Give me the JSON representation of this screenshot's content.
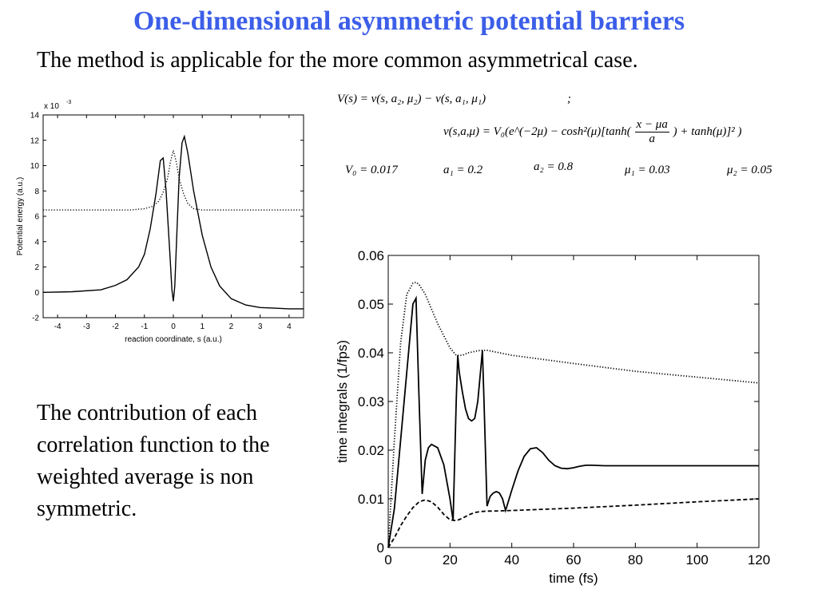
{
  "slide": {
    "title": "One-dimensional asymmetric potential barriers",
    "subtitle": "The method is applicable for the more common asymmetrical case.",
    "body_text": "The contribution of each correlation function to the weighted average is non symmetric."
  },
  "colors": {
    "title": "#3c5ee8",
    "text": "#000000"
  },
  "equations": {
    "V_def": "V(s) = ν(s, a₂, μ₂) − ν(s, a₁, μ₁)",
    "separator": ";",
    "nu_def_left": "ν(s,a,μ) = V₀(e^(−2μ) − cosh²(μ)[tanh(",
    "nu_frac_num": "x − μa",
    "nu_frac_den": "a",
    "nu_def_right": ") + tanh(μ)]² )",
    "params": [
      "V₀ = 0.017",
      "a₁ = 0.2",
      "a₂ = 0.8",
      "μ₁ = 0.03",
      "μ₂ = 0.05"
    ]
  },
  "chart_data": [
    {
      "type": "line",
      "title": "",
      "xlabel": "reaction coordinate, s (a.u.)",
      "ylabel": "Potential energy (a.u.)",
      "y_exponent_label": "x 10",
      "y_exponent": "-3",
      "xlim": [
        -4.5,
        4.5
      ],
      "ylim": [
        -2,
        14
      ],
      "xticks": [
        "-4",
        "-3",
        "-2",
        "-1",
        "0",
        "1",
        "2",
        "3",
        "4"
      ],
      "yticks": [
        "-2",
        "0",
        "2",
        "4",
        "6",
        "8",
        "10",
        "12",
        "14"
      ],
      "series": [
        {
          "style": "solid",
          "x": [
            -4.5,
            -3.5,
            -2.5,
            -2.0,
            -1.6,
            -1.2,
            -1.0,
            -0.8,
            -0.6,
            -0.45,
            -0.35,
            -0.25,
            -0.12,
            -0.05,
            0.0,
            0.05,
            0.12,
            0.2,
            0.3,
            0.38,
            0.5,
            0.7,
            1.0,
            1.3,
            1.6,
            2.0,
            2.5,
            3.0,
            3.5,
            4.0,
            4.5
          ],
          "values": [
            0.0,
            0.05,
            0.2,
            0.55,
            1.0,
            2.0,
            3.0,
            5.0,
            7.8,
            10.4,
            10.6,
            8.0,
            3.0,
            0.2,
            -0.7,
            0.5,
            4.5,
            9.0,
            11.8,
            12.3,
            11.0,
            8.0,
            4.5,
            2.0,
            0.5,
            -0.5,
            -1.0,
            -1.2,
            -1.25,
            -1.3,
            -1.3
          ]
        },
        {
          "style": "dotted",
          "x": [
            -4.5,
            -1.5,
            -1.0,
            -0.7,
            -0.5,
            -0.35,
            -0.2,
            -0.1,
            0.0,
            0.1,
            0.2,
            0.35,
            0.5,
            0.7,
            1.0,
            1.5,
            4.5
          ],
          "values": [
            6.5,
            6.5,
            6.6,
            6.8,
            7.2,
            7.9,
            9.0,
            10.3,
            11.2,
            10.3,
            9.0,
            7.8,
            7.0,
            6.6,
            6.5,
            6.5,
            6.5
          ]
        }
      ]
    },
    {
      "type": "line",
      "title": "",
      "xlabel": "time (fs)",
      "ylabel": "time integrals (1/fps)",
      "xlim": [
        0,
        120
      ],
      "ylim": [
        0,
        0.06
      ],
      "xticks": [
        "0",
        "20",
        "40",
        "60",
        "80",
        "100",
        "120"
      ],
      "yticks": [
        "0",
        "0.01",
        "0.02",
        "0.03",
        "0.04",
        "0.05",
        "0.06"
      ],
      "series": [
        {
          "style": "dotted",
          "x": [
            0,
            2,
            4,
            6,
            8,
            9,
            10,
            12,
            14,
            16,
            18,
            20,
            22,
            24,
            26,
            28,
            30,
            32,
            40,
            60,
            80,
            100,
            120
          ],
          "values": [
            0.0,
            0.022,
            0.042,
            0.052,
            0.0543,
            0.0545,
            0.054,
            0.052,
            0.049,
            0.046,
            0.0435,
            0.041,
            0.0395,
            0.0395,
            0.04,
            0.0403,
            0.0405,
            0.0405,
            0.0395,
            0.0378,
            0.0362,
            0.035,
            0.0338
          ]
        },
        {
          "style": "solid",
          "x": [
            0,
            2,
            4,
            6,
            8,
            9,
            10,
            11,
            12,
            13,
            14,
            16,
            18,
            20,
            21,
            22,
            22.5,
            23,
            24,
            25,
            26,
            27,
            28,
            29,
            30,
            30.5,
            31,
            32,
            33,
            34,
            35,
            36,
            37,
            38,
            40,
            42,
            44,
            46,
            48,
            50,
            52,
            54,
            56,
            58,
            60,
            62,
            64,
            66,
            70,
            80,
            100,
            120
          ],
          "values": [
            0.0,
            0.008,
            0.022,
            0.036,
            0.05,
            0.0512,
            0.03,
            0.011,
            0.018,
            0.0205,
            0.0212,
            0.0205,
            0.017,
            0.01,
            0.0055,
            0.03,
            0.0395,
            0.036,
            0.032,
            0.0285,
            0.0265,
            0.026,
            0.0265,
            0.03,
            0.037,
            0.0405,
            0.03,
            0.0085,
            0.0105,
            0.0112,
            0.0115,
            0.0112,
            0.01,
            0.0076,
            0.0118,
            0.0157,
            0.0187,
            0.0203,
            0.0205,
            0.0195,
            0.0179,
            0.0168,
            0.0163,
            0.0162,
            0.0164,
            0.0167,
            0.0169,
            0.0169,
            0.0168,
            0.0168,
            0.0168,
            0.0168
          ]
        },
        {
          "style": "dashed",
          "x": [
            0,
            2,
            4,
            6,
            8,
            10,
            12,
            14,
            16,
            18,
            20,
            22,
            24,
            26,
            28,
            30,
            32,
            34,
            40,
            60,
            80,
            100,
            120
          ],
          "values": [
            0.0,
            0.002,
            0.0045,
            0.0065,
            0.0082,
            0.0094,
            0.0098,
            0.0094,
            0.0083,
            0.0068,
            0.0057,
            0.0055,
            0.006,
            0.0067,
            0.0072,
            0.0074,
            0.0075,
            0.0075,
            0.0076,
            0.0081,
            0.0087,
            0.0094,
            0.01
          ]
        }
      ]
    }
  ]
}
